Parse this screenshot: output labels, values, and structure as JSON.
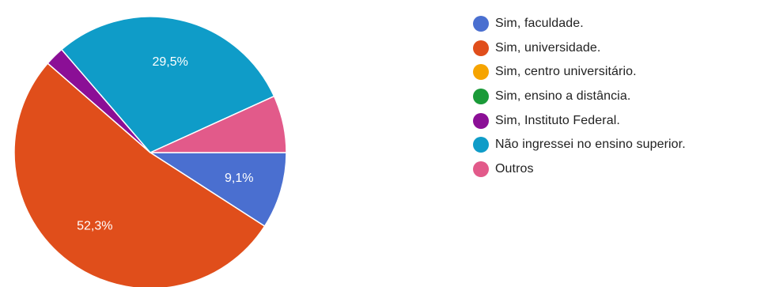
{
  "chart_data": {
    "type": "pie",
    "start_direction": "right",
    "legend_position": "right",
    "slices": [
      {
        "label": "Sim, faculdade.",
        "value": 9.1,
        "display": "9,1%",
        "color": "#4a6fd0"
      },
      {
        "label": "Sim, universidade.",
        "value": 52.3,
        "display": "52,3%",
        "color": "#e04e1b"
      },
      {
        "label": "Sim, centro universitário.",
        "value": 0,
        "display": "",
        "color": "#f6a400"
      },
      {
        "label": "Sim, ensino a distância.",
        "value": 0,
        "display": "",
        "color": "#1a9a38"
      },
      {
        "label": "Sim, Instituto Federal.",
        "value": 2.3,
        "display": "",
        "color": "#8b0f96"
      },
      {
        "label": "Não ingressei no ensino superior.",
        "value": 29.5,
        "display": "29,5%",
        "color": "#0f9cc8"
      },
      {
        "label": "Outros",
        "value": 6.8,
        "display": "",
        "color": "#e25a8a"
      }
    ]
  }
}
